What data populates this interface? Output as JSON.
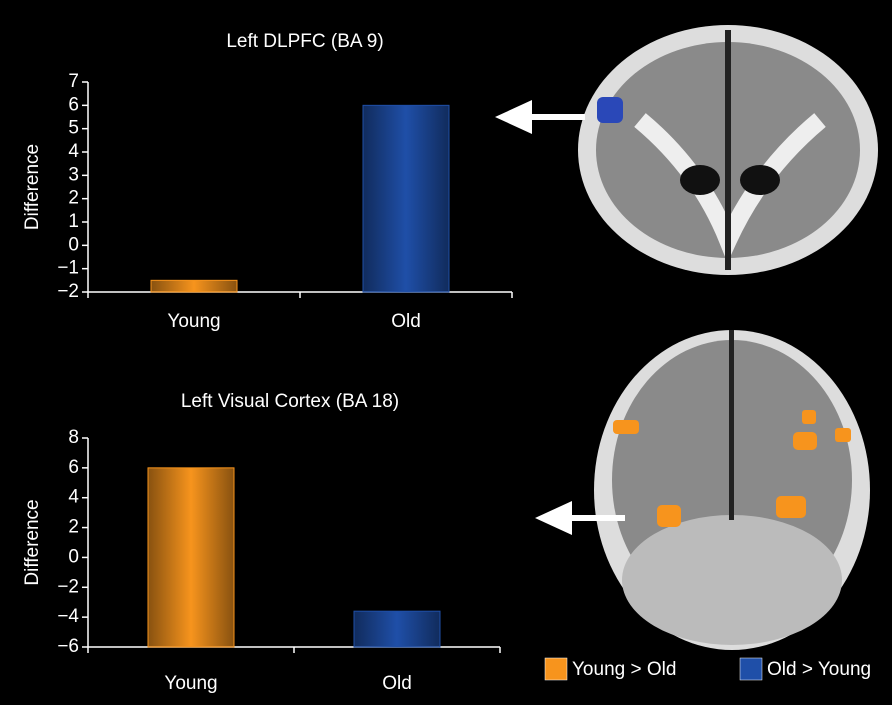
{
  "chart_data": [
    {
      "type": "bar",
      "title": "Left DLPFC (BA 9)",
      "ylabel": "Difference",
      "categories": [
        "Young",
        "Old"
      ],
      "values": [
        -1.5,
        6
      ],
      "colors": [
        "#f7941d",
        "#1f4fa8"
      ],
      "ylim": [
        -2,
        7
      ],
      "yticks": [
        {
          "value": -2,
          "label": "−2"
        },
        {
          "value": -1,
          "label": "−1"
        },
        0,
        1,
        2,
        3,
        4,
        5,
        6,
        7
      ]
    },
    {
      "type": "bar",
      "title": "Left Visual Cortex (BA 18)",
      "ylabel": "Difference",
      "categories": [
        "Young",
        "Old"
      ],
      "values": [
        6,
        -3.6
      ],
      "colors": [
        "#f7941d",
        "#1f4fa8"
      ],
      "ylim": [
        -6,
        8
      ],
      "yticks": [
        {
          "value": -6,
          "label": "−6"
        },
        {
          "value": -4,
          "label": "−4"
        },
        {
          "value": -2,
          "label": "−2"
        },
        0,
        2,
        4,
        6,
        8
      ]
    }
  ],
  "legend": [
    {
      "label": "Young > Old",
      "color": "#f7941d"
    },
    {
      "label": "Old > Young",
      "color": "#1f4fa8"
    }
  ]
}
